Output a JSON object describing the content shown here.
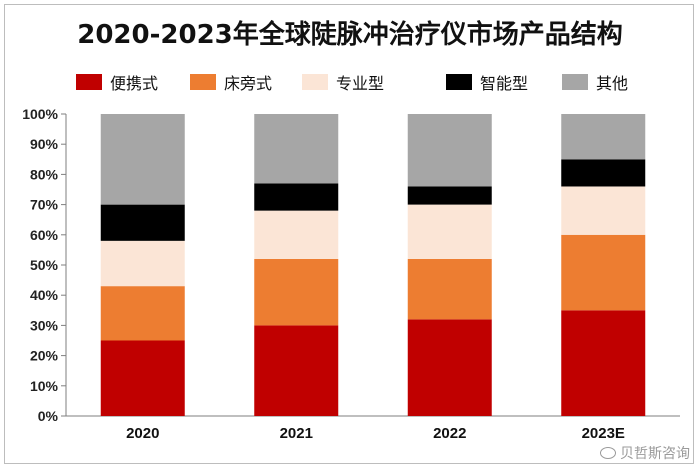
{
  "chart_data": {
    "type": "bar",
    "stacked": true,
    "title": "2020-2023年全球陡脉冲治疗仪市场产品结构",
    "categories": [
      "2020",
      "2021",
      "2022",
      "2023E"
    ],
    "series": [
      {
        "name": "便携式",
        "color": "#c00000",
        "values": [
          25,
          30,
          32,
          35
        ]
      },
      {
        "name": "床旁式",
        "color": "#ed7d31",
        "values": [
          18,
          22,
          20,
          25
        ]
      },
      {
        "name": "专业型",
        "color": "#fbe5d6",
        "values": [
          15,
          16,
          18,
          16
        ]
      },
      {
        "name": "智能型",
        "color": "#000000",
        "values": [
          12,
          9,
          6,
          9
        ]
      },
      {
        "name": "其他",
        "color": "#a6a6a6",
        "values": [
          30,
          23,
          24,
          15
        ]
      }
    ],
    "ylim": [
      0,
      100
    ],
    "yticks": [
      "0%",
      "10%",
      "20%",
      "30%",
      "40%",
      "50%",
      "60%",
      "70%",
      "80%",
      "90%",
      "100%"
    ],
    "xlabel": "",
    "ylabel": "",
    "grid": false,
    "legend_position": "top"
  },
  "watermark": {
    "text": "贝哲斯咨询",
    "color": "#9a9a9a"
  }
}
